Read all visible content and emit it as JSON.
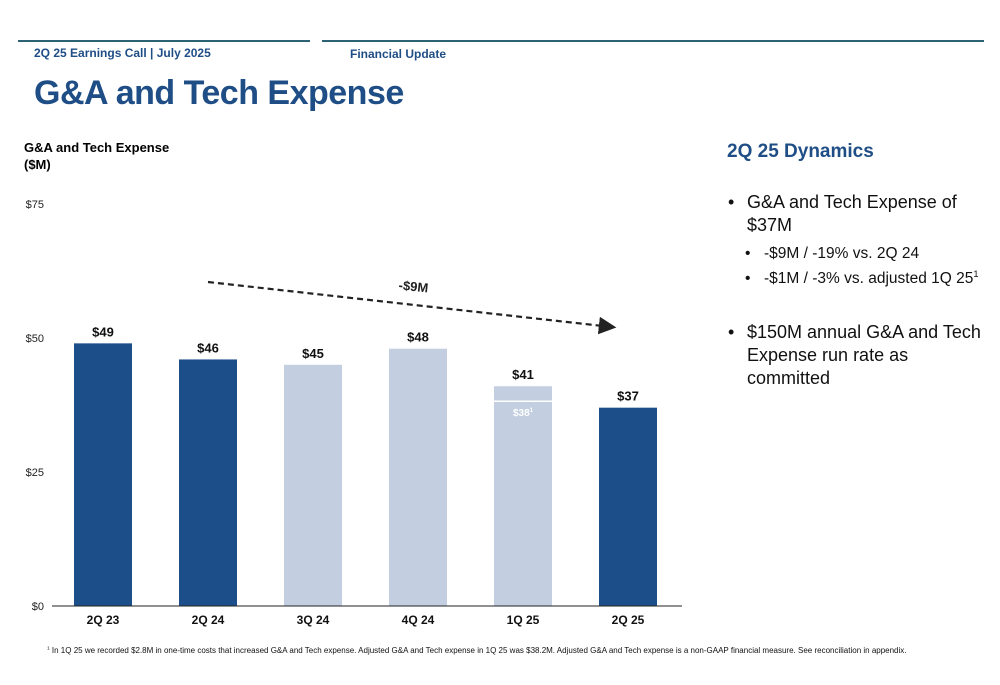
{
  "header": {
    "left_label": "2Q 25 Earnings Call | July 2025",
    "right_label": "Financial Update"
  },
  "page_title": "G&A and Tech Expense",
  "colors": {
    "brand_blue": "#1f4e86",
    "bar_dark": "#1c4e8a",
    "bar_light": "#c3cfe1",
    "rule": "#2d6377"
  },
  "chart_data": {
    "type": "bar",
    "title_line1": "G&A and Tech Expense",
    "title_line2": "($M)",
    "categories": [
      "2Q 23",
      "2Q 24",
      "3Q 24",
      "4Q 24",
      "1Q 25",
      "2Q 25"
    ],
    "values": [
      49,
      46,
      45,
      48,
      41,
      37
    ],
    "data_labels": [
      "$49",
      "$46",
      "$45",
      "$48",
      "$41",
      "$37"
    ],
    "bar_shades": [
      "dark",
      "dark",
      "light",
      "light",
      "light",
      "dark"
    ],
    "adjusted": {
      "category": "1Q 25",
      "value": 38.2,
      "label": "$38",
      "footnote_ref": "1"
    },
    "yticks": [
      {
        "value": 0,
        "label": "$0"
      },
      {
        "value": 25,
        "label": "$25"
      },
      {
        "value": 50,
        "label": "$50"
      },
      {
        "value": 75,
        "label": "$75"
      }
    ],
    "ylim": [
      0,
      75
    ],
    "trend_annotation": {
      "text": "-$9M",
      "from_category": "2Q 24",
      "to_category": "2Q 25",
      "style": "dashed-arrow"
    },
    "grid": false
  },
  "dynamics": {
    "title": "2Q 25 Dynamics",
    "bullet1": "G&A and Tech Expense of $37M",
    "sub1": "-$9M / -19% vs. 2Q 24",
    "sub2": "-$1M / -3% vs. adjusted 1Q 25",
    "sub2_sup": "1",
    "bullet2": "$150M annual G&A and Tech Expense run rate as committed",
    "bullet_char": "•"
  },
  "footnote": {
    "marker": "1",
    "text": "In 1Q 25 we recorded $2.8M in one-time costs that increased G&A and Tech expense. Adjusted G&A and Tech expense in 1Q 25 was $38.2M. Adjusted G&A and Tech expense is a non-GAAP financial measure. See reconciliation in appendix."
  }
}
